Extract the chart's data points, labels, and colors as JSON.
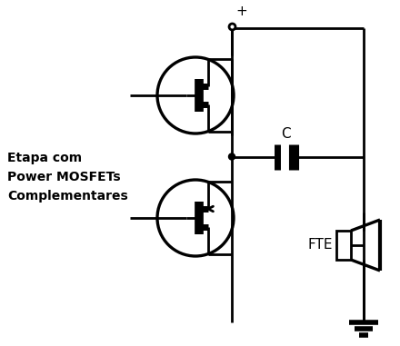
{
  "bg_color": "#ffffff",
  "line_color": "#000000",
  "line_width": 2.0,
  "text_color": "#000000",
  "title_text": "Etapa com\nPower MOSFETs\nComplementares",
  "label_C": "C",
  "label_FTE": "FTE",
  "label_plus": "+",
  "figsize": [
    4.4,
    3.81
  ],
  "dpi": 100
}
